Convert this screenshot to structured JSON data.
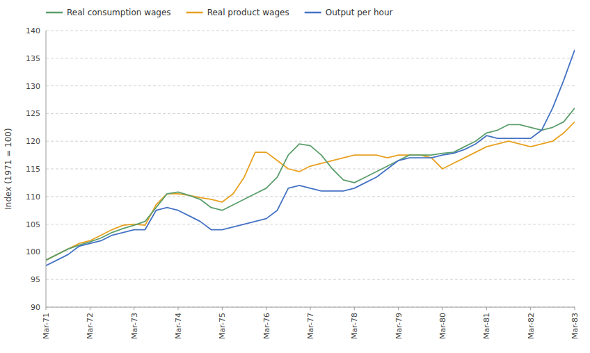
{
  "chart_data": {
    "type": "line",
    "ylabel": "Index (1971 = 100)",
    "ylim": [
      90,
      140
    ],
    "yticks": [
      90,
      95,
      100,
      105,
      110,
      115,
      120,
      125,
      130,
      135,
      140
    ],
    "grid": true,
    "legend": "upper left",
    "categories": [
      "Mar-71",
      null,
      null,
      null,
      "Mar-72",
      null,
      null,
      null,
      "Mar-73",
      null,
      null,
      null,
      "Mar-74",
      null,
      null,
      null,
      "Mar-75",
      null,
      null,
      null,
      "Mar-76",
      null,
      null,
      null,
      "Mar-77",
      null,
      null,
      null,
      "Mar-78",
      null,
      null,
      null,
      "Mar-79",
      null,
      null,
      null,
      "Mar-80",
      null,
      null,
      null,
      "Mar-81",
      null,
      null,
      null,
      "Mar-82",
      null,
      null,
      null,
      "Mar-83"
    ],
    "series": [
      {
        "name": "Real consumption wages",
        "color": "#5B9E6B",
        "values": [
          98.5,
          99.5,
          100.5,
          101.2,
          101.8,
          102.5,
          103.5,
          104.2,
          104.8,
          105.5,
          108.0,
          110.5,
          110.8,
          110.2,
          109.5,
          108.0,
          107.5,
          108.5,
          109.5,
          110.5,
          111.5,
          113.5,
          117.5,
          119.5,
          119.2,
          117.5,
          115.0,
          113.0,
          112.5,
          113.5,
          114.5,
          115.5,
          116.5,
          117.5,
          117.5,
          117.5,
          117.8,
          118.0,
          119.0,
          120.0,
          121.5,
          122.0,
          123.0,
          123.0,
          122.5,
          122.0,
          122.5,
          123.5,
          126.0
        ]
      },
      {
        "name": "Real product wages",
        "color": "#E8A020",
        "values": [
          98.5,
          99.5,
          100.5,
          101.5,
          102.0,
          103.0,
          104.0,
          104.8,
          105.0,
          104.8,
          108.5,
          110.5,
          110.5,
          110.2,
          109.8,
          109.5,
          109.0,
          110.5,
          113.5,
          118.0,
          118.0,
          116.5,
          115.0,
          114.5,
          115.5,
          116.0,
          116.5,
          117.0,
          117.5,
          117.5,
          117.5,
          117.0,
          117.5,
          117.5,
          117.5,
          117.0,
          115.0,
          116.0,
          117.0,
          118.0,
          119.0,
          119.5,
          120.0,
          119.5,
          119.0,
          119.5,
          120.0,
          121.5,
          123.5
        ]
      },
      {
        "name": "Output per hour",
        "color": "#4472C4",
        "values": [
          97.5,
          98.5,
          99.5,
          101.0,
          101.5,
          102.0,
          103.0,
          103.5,
          104.0,
          104.0,
          107.5,
          108.0,
          107.5,
          106.5,
          105.5,
          104.0,
          104.0,
          104.5,
          105.0,
          105.5,
          106.0,
          107.5,
          111.5,
          112.0,
          111.5,
          111.0,
          111.0,
          111.0,
          111.5,
          112.5,
          113.5,
          115.0,
          116.5,
          117.0,
          117.0,
          117.0,
          117.5,
          117.8,
          118.5,
          119.5,
          121.0,
          120.5,
          120.5,
          120.5,
          120.5,
          122.0,
          126.0,
          131.0,
          136.5
        ]
      }
    ]
  }
}
